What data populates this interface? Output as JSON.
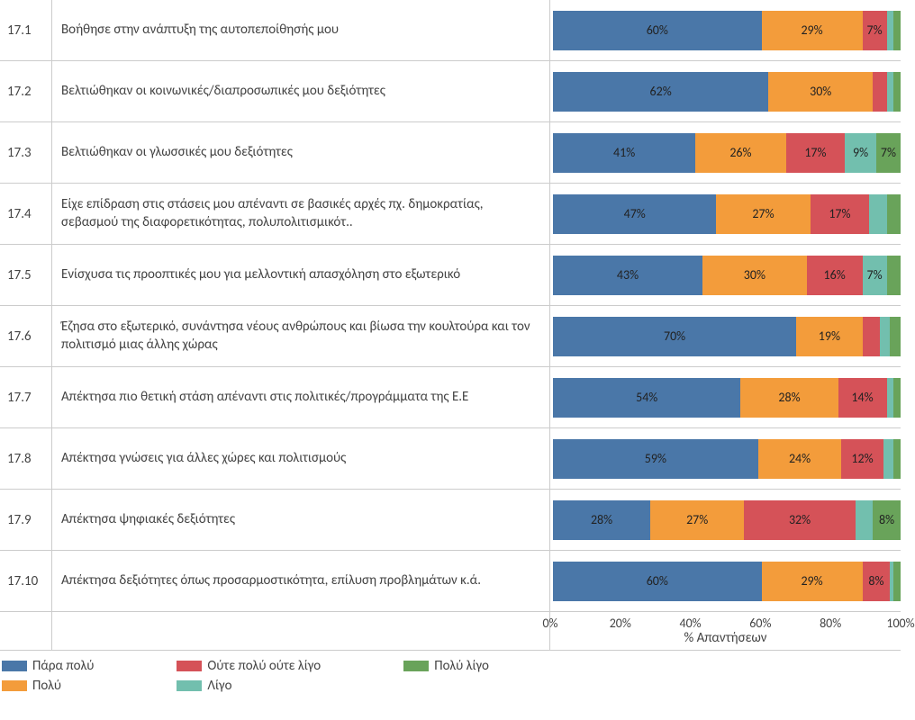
{
  "chart": {
    "type": "stacked_bar_horizontal",
    "x_axis_label": "% Απαντήσεων",
    "x_ticks": [
      "0%",
      "20%",
      "40%",
      "60%",
      "80%",
      "100%"
    ],
    "x_tick_positions": [
      0,
      20,
      40,
      60,
      80,
      100
    ],
    "xlim": [
      0,
      100
    ],
    "min_label_pct": 6,
    "colors": {
      "para_poly": "#4a77a8",
      "poly": "#f39c3b",
      "neutral": "#d55258",
      "ligo": "#72bfae",
      "poly_ligo": "#69a35a",
      "grid": "#e6e6e6",
      "border": "#cccccc",
      "text": "#444444",
      "background": "#ffffff"
    },
    "legend": [
      {
        "key": "para_poly",
        "label": "Πάρα πολύ"
      },
      {
        "key": "poly",
        "label": "Πολύ"
      },
      {
        "key": "neutral",
        "label": "Ούτε πολύ ούτε λίγο"
      },
      {
        "key": "ligo",
        "label": "Λίγο"
      },
      {
        "key": "poly_ligo",
        "label": "Πολύ λίγο"
      }
    ],
    "rows": [
      {
        "id": "17.1",
        "label": "Βοήθησε στην ανάπτυξη της αυτοπεποίθησής μου",
        "segments": [
          {
            "k": "para_poly",
            "v": 60
          },
          {
            "k": "poly",
            "v": 29
          },
          {
            "k": "neutral",
            "v": 7
          },
          {
            "k": "ligo",
            "v": 2
          },
          {
            "k": "poly_ligo",
            "v": 2
          }
        ]
      },
      {
        "id": "17.2",
        "label": "Βελτιώθηκαν οι κοινωνικές/διαπροσωπικές μου δεξιότητες",
        "segments": [
          {
            "k": "para_poly",
            "v": 62
          },
          {
            "k": "poly",
            "v": 30
          },
          {
            "k": "neutral",
            "v": 4
          },
          {
            "k": "ligo",
            "v": 2
          },
          {
            "k": "poly_ligo",
            "v": 2
          }
        ]
      },
      {
        "id": "17.3",
        "label": "Βελτιώθηκαν οι γλωσσικές μου δεξιότητες",
        "segments": [
          {
            "k": "para_poly",
            "v": 41
          },
          {
            "k": "poly",
            "v": 26
          },
          {
            "k": "neutral",
            "v": 17
          },
          {
            "k": "ligo",
            "v": 9
          },
          {
            "k": "poly_ligo",
            "v": 7
          }
        ]
      },
      {
        "id": "17.4",
        "label": "Είχε επίδραση στις στάσεις μου απέναντι σε βασικές αρχές πχ. δημοκρατίας, σεβασμού της διαφορετικότητας, πολυπολιτισμικότ..",
        "segments": [
          {
            "k": "para_poly",
            "v": 47
          },
          {
            "k": "poly",
            "v": 27
          },
          {
            "k": "neutral",
            "v": 17
          },
          {
            "k": "ligo",
            "v": 5
          },
          {
            "k": "poly_ligo",
            "v": 4
          }
        ]
      },
      {
        "id": "17.5",
        "label": "Ενίσχυσα τις προοπτικές μου για μελλοντική απασχόληση στο εξωτερικό",
        "segments": [
          {
            "k": "para_poly",
            "v": 43
          },
          {
            "k": "poly",
            "v": 30
          },
          {
            "k": "neutral",
            "v": 16
          },
          {
            "k": "ligo",
            "v": 7
          },
          {
            "k": "poly_ligo",
            "v": 4
          }
        ]
      },
      {
        "id": "17.6",
        "label": "Έζησα στο εξωτερικό, συνάντησα νέους ανθρώπους και βίωσα την κουλτούρα και τον πολιτισμό μιας άλλης χώρας",
        "segments": [
          {
            "k": "para_poly",
            "v": 70
          },
          {
            "k": "poly",
            "v": 19
          },
          {
            "k": "neutral",
            "v": 5
          },
          {
            "k": "ligo",
            "v": 3
          },
          {
            "k": "poly_ligo",
            "v": 3
          }
        ]
      },
      {
        "id": "17.7",
        "label": "Απέκτησα πιο θετική στάση απέναντι στις πολιτικές/προγράμματα της Ε.Ε",
        "segments": [
          {
            "k": "para_poly",
            "v": 54
          },
          {
            "k": "poly",
            "v": 28
          },
          {
            "k": "neutral",
            "v": 14
          },
          {
            "k": "ligo",
            "v": 2
          },
          {
            "k": "poly_ligo",
            "v": 2
          }
        ]
      },
      {
        "id": "17.8",
        "label": "Απέκτησα γνώσεις για άλλες χώρες και πολιτισμούς",
        "segments": [
          {
            "k": "para_poly",
            "v": 59
          },
          {
            "k": "poly",
            "v": 24
          },
          {
            "k": "neutral",
            "v": 12
          },
          {
            "k": "ligo",
            "v": 3
          },
          {
            "k": "poly_ligo",
            "v": 2
          }
        ]
      },
      {
        "id": "17.9",
        "label": "Απέκτησα ψηφιακές δεξιότητες",
        "segments": [
          {
            "k": "para_poly",
            "v": 28
          },
          {
            "k": "poly",
            "v": 27
          },
          {
            "k": "neutral",
            "v": 32
          },
          {
            "k": "ligo",
            "v": 5
          },
          {
            "k": "poly_ligo",
            "v": 8
          }
        ]
      },
      {
        "id": "17.10",
        "label": "Απέκτησα δεξιότητες όπως προσαρμοστικότητα, επίλυση προβλημάτων κ.ά.",
        "segments": [
          {
            "k": "para_poly",
            "v": 60
          },
          {
            "k": "poly",
            "v": 29
          },
          {
            "k": "neutral",
            "v": 8
          },
          {
            "k": "ligo",
            "v": 1
          },
          {
            "k": "poly_ligo",
            "v": 2
          }
        ]
      }
    ]
  }
}
